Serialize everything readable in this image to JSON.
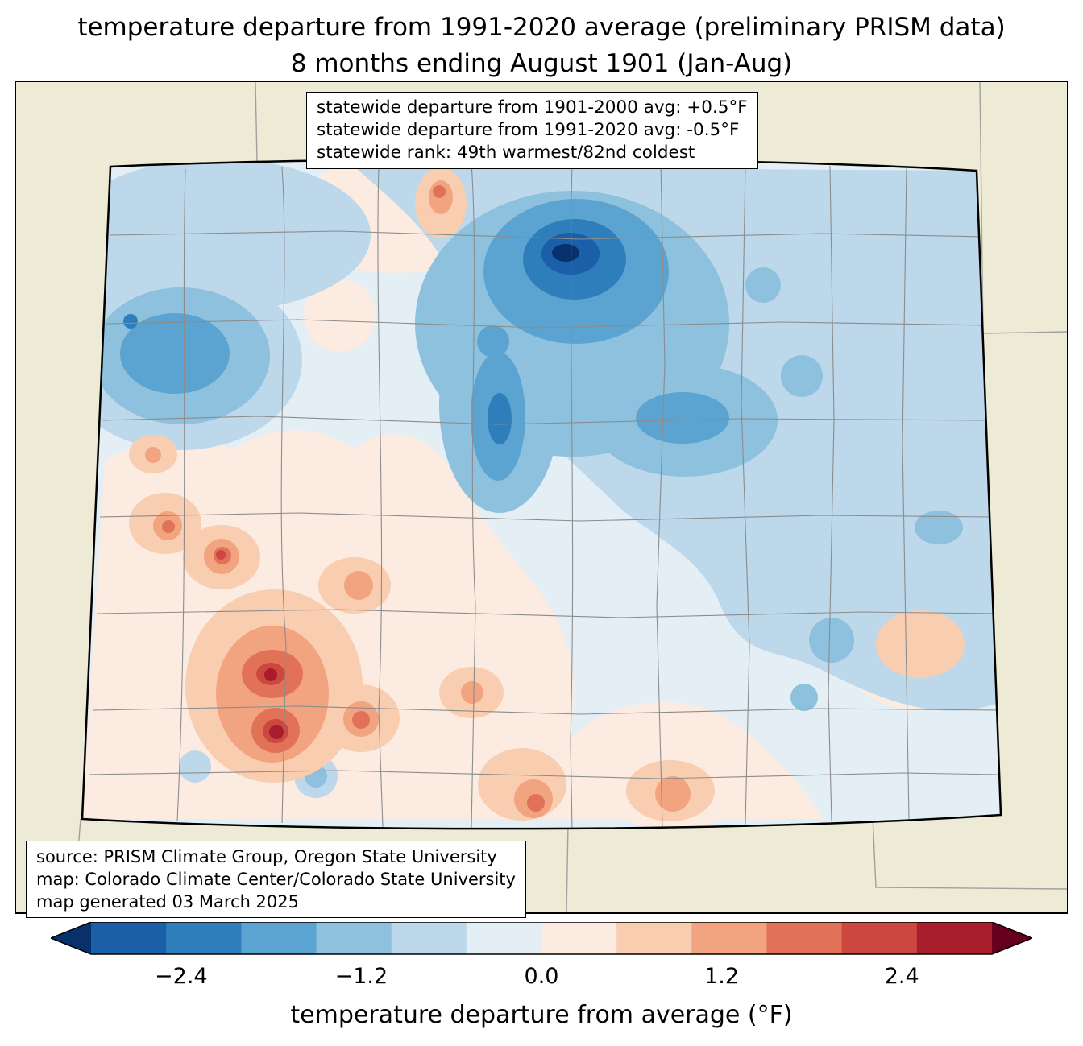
{
  "title": {
    "line1": "temperature departure from 1991-2020 average (preliminary PRISM data)",
    "line2": "8 months ending August 1901 (Jan-Aug)"
  },
  "stats_box": {
    "line1": "statewide departure from 1901-2000 avg: +0.5°F",
    "line2": "statewide departure from 1991-2020 avg: -0.5°F",
    "line3": "statewide rank: 49th warmest/82nd coldest"
  },
  "source_box": {
    "line1": "source: PRISM Climate Group, Oregon State University",
    "line2": "map: Colorado Climate Center/Colorado State University",
    "line3": "map generated 03 March 2025"
  },
  "colorbar": {
    "label": "temperature departure from average (°F)",
    "ticks": [
      "−2.4",
      "−1.2",
      "0.0",
      "1.2",
      "2.4"
    ],
    "tick_values": [
      -2.4,
      -1.2,
      0.0,
      1.2,
      2.4
    ],
    "range": [
      -3,
      3
    ],
    "left_arrow_color": "#08306b",
    "right_arrow_color": "#67001f",
    "segment_colors": [
      "#1a5fa8",
      "#2e7ebc",
      "#5ba3d0",
      "#8dc1dd",
      "#bcd8ea",
      "#e3eef5",
      "#fcebe0",
      "#f9cdb0",
      "#f2a37f",
      "#e17257",
      "#cb4740",
      "#a81c2c"
    ]
  },
  "map": {
    "region": "Colorado",
    "background_color": "#edead6",
    "state_border_color": "#000000",
    "county_line_color": "#8c8c8c",
    "neighbor_line_color": "#a0a0a0"
  }
}
